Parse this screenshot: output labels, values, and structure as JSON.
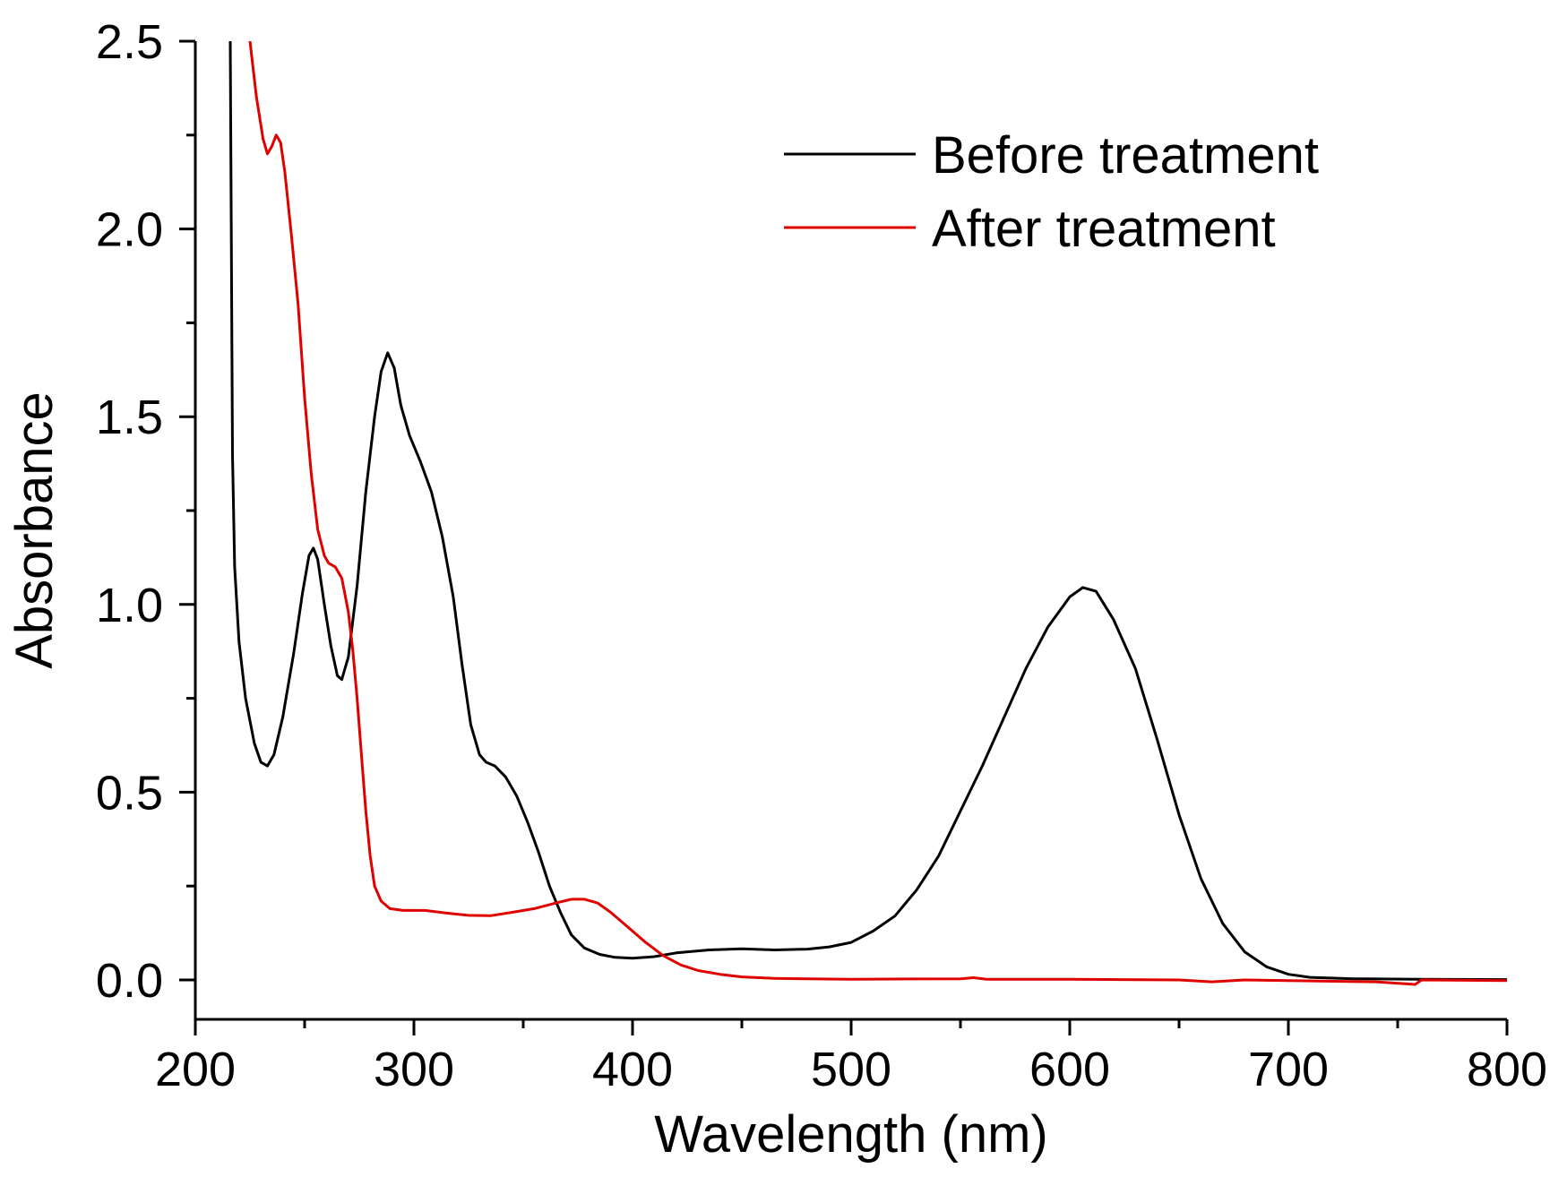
{
  "chart_data": {
    "type": "line",
    "title": "",
    "xlabel": "Wavelength (nm)",
    "ylabel": "Absorbance",
    "xlim": [
      200,
      800
    ],
    "ylim": [
      -0.1,
      2.5
    ],
    "xticks": [
      200,
      300,
      400,
      500,
      600,
      700,
      800
    ],
    "xtick_labels": [
      "200",
      "300",
      "400",
      "500",
      "600",
      "700",
      "800"
    ],
    "yticks": [
      0.0,
      0.5,
      1.0,
      1.5,
      2.0,
      2.5
    ],
    "ytick_labels": [
      "0.0",
      "0.5",
      "1.0",
      "1.5",
      "2.0",
      "2.5"
    ],
    "x_minor_step": 50,
    "y_minor_step": 0.25,
    "grid": false,
    "legend_position": "top-right",
    "series": [
      {
        "name": "Before treatment",
        "color": "#000000",
        "points": [
          [
            216,
            2.5
          ],
          [
            217,
            1.4
          ],
          [
            218,
            1.1
          ],
          [
            220,
            0.9
          ],
          [
            223,
            0.75
          ],
          [
            227,
            0.63
          ],
          [
            230,
            0.58
          ],
          [
            233,
            0.57
          ],
          [
            236,
            0.6
          ],
          [
            240,
            0.7
          ],
          [
            245,
            0.87
          ],
          [
            249,
            1.03
          ],
          [
            252,
            1.13
          ],
          [
            254,
            1.15
          ],
          [
            256,
            1.12
          ],
          [
            259,
            1.0
          ],
          [
            262,
            0.89
          ],
          [
            265,
            0.81
          ],
          [
            267,
            0.8
          ],
          [
            270,
            0.86
          ],
          [
            274,
            1.05
          ],
          [
            278,
            1.3
          ],
          [
            282,
            1.5
          ],
          [
            285,
            1.62
          ],
          [
            288,
            1.67
          ],
          [
            291,
            1.63
          ],
          [
            294,
            1.53
          ],
          [
            298,
            1.45
          ],
          [
            303,
            1.38
          ],
          [
            308,
            1.3
          ],
          [
            313,
            1.18
          ],
          [
            318,
            1.02
          ],
          [
            322,
            0.84
          ],
          [
            326,
            0.68
          ],
          [
            330,
            0.6
          ],
          [
            333,
            0.58
          ],
          [
            337,
            0.57
          ],
          [
            342,
            0.54
          ],
          [
            347,
            0.49
          ],
          [
            352,
            0.42
          ],
          [
            357,
            0.34
          ],
          [
            362,
            0.25
          ],
          [
            367,
            0.18
          ],
          [
            372,
            0.12
          ],
          [
            378,
            0.085
          ],
          [
            385,
            0.068
          ],
          [
            392,
            0.06
          ],
          [
            400,
            0.058
          ],
          [
            410,
            0.062
          ],
          [
            420,
            0.072
          ],
          [
            435,
            0.08
          ],
          [
            450,
            0.083
          ],
          [
            465,
            0.08
          ],
          [
            480,
            0.082
          ],
          [
            490,
            0.088
          ],
          [
            500,
            0.1
          ],
          [
            510,
            0.13
          ],
          [
            520,
            0.17
          ],
          [
            530,
            0.24
          ],
          [
            540,
            0.33
          ],
          [
            550,
            0.45
          ],
          [
            560,
            0.57
          ],
          [
            570,
            0.7
          ],
          [
            580,
            0.83
          ],
          [
            590,
            0.94
          ],
          [
            600,
            1.02
          ],
          [
            606,
            1.045
          ],
          [
            612,
            1.035
          ],
          [
            620,
            0.96
          ],
          [
            630,
            0.83
          ],
          [
            640,
            0.64
          ],
          [
            650,
            0.44
          ],
          [
            660,
            0.27
          ],
          [
            670,
            0.15
          ],
          [
            680,
            0.075
          ],
          [
            690,
            0.035
          ],
          [
            700,
            0.015
          ],
          [
            710,
            0.007
          ],
          [
            730,
            0.003
          ],
          [
            760,
            0.002
          ],
          [
            800,
            0.001
          ]
        ]
      },
      {
        "name": "After treatment",
        "color": "#e00000",
        "points": [
          [
            225,
            2.5
          ],
          [
            228,
            2.35
          ],
          [
            231,
            2.24
          ],
          [
            233,
            2.2
          ],
          [
            235,
            2.22
          ],
          [
            237,
            2.25
          ],
          [
            239,
            2.23
          ],
          [
            241,
            2.15
          ],
          [
            244,
            1.98
          ],
          [
            247,
            1.8
          ],
          [
            250,
            1.55
          ],
          [
            253,
            1.35
          ],
          [
            256,
            1.2
          ],
          [
            259,
            1.13
          ],
          [
            261,
            1.11
          ],
          [
            264,
            1.1
          ],
          [
            267,
            1.07
          ],
          [
            270,
            0.98
          ],
          [
            272,
            0.88
          ],
          [
            274,
            0.75
          ],
          [
            276,
            0.6
          ],
          [
            278,
            0.45
          ],
          [
            280,
            0.33
          ],
          [
            282,
            0.25
          ],
          [
            285,
            0.21
          ],
          [
            289,
            0.19
          ],
          [
            295,
            0.185
          ],
          [
            305,
            0.185
          ],
          [
            315,
            0.178
          ],
          [
            325,
            0.172
          ],
          [
            335,
            0.171
          ],
          [
            345,
            0.18
          ],
          [
            355,
            0.19
          ],
          [
            365,
            0.205
          ],
          [
            372,
            0.215
          ],
          [
            378,
            0.215
          ],
          [
            384,
            0.205
          ],
          [
            390,
            0.18
          ],
          [
            398,
            0.14
          ],
          [
            406,
            0.1
          ],
          [
            414,
            0.065
          ],
          [
            422,
            0.04
          ],
          [
            430,
            0.025
          ],
          [
            440,
            0.015
          ],
          [
            450,
            0.008
          ],
          [
            465,
            0.004
          ],
          [
            480,
            0.003
          ],
          [
            500,
            0.002
          ],
          [
            550,
            0.003
          ],
          [
            556,
            0.006
          ],
          [
            562,
            0.002
          ],
          [
            600,
            0.002
          ],
          [
            650,
            0.0
          ],
          [
            665,
            -0.005
          ],
          [
            680,
            0.0
          ],
          [
            700,
            -0.002
          ],
          [
            740,
            -0.005
          ],
          [
            758,
            -0.012
          ],
          [
            761,
            0.0
          ],
          [
            800,
            -0.002
          ]
        ]
      }
    ]
  }
}
